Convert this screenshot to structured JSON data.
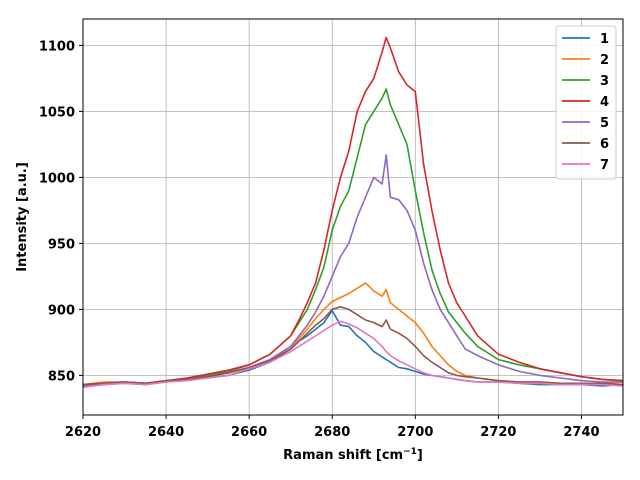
{
  "chart_data": {
    "type": "line",
    "title": "",
    "xlabel": "Raman shift [cm",
    "xlabel_sup": "−1",
    "xlabel_end": "]",
    "ylabel": "Intensity [a.u.]",
    "xlim": [
      2620,
      2750
    ],
    "ylim": [
      820,
      1120
    ],
    "xticks": [
      2620,
      2640,
      2660,
      2680,
      2700,
      2720,
      2740
    ],
    "yticks": [
      850,
      900,
      950,
      1000,
      1050,
      1100
    ],
    "grid": true,
    "legend_position": "top-right",
    "x": [
      2620,
      2625,
      2630,
      2635,
      2640,
      2645,
      2650,
      2655,
      2660,
      2665,
      2670,
      2672,
      2674,
      2676,
      2678,
      2680,
      2682,
      2684,
      2686,
      2688,
      2690,
      2692,
      2693,
      2694,
      2696,
      2698,
      2700,
      2702,
      2704,
      2706,
      2708,
      2710,
      2712,
      2715,
      2720,
      2725,
      2730,
      2735,
      2740,
      2745,
      2750
    ],
    "series": [
      {
        "name": "1",
        "color": "#1f77b4",
        "values": [
          843,
          844,
          845,
          844,
          845,
          847,
          848,
          850,
          854,
          860,
          870,
          876,
          880,
          885,
          890,
          899,
          888,
          887,
          880,
          875,
          868,
          864,
          862,
          860,
          856,
          855,
          853,
          851,
          850,
          849,
          848,
          847,
          846,
          845,
          845,
          844,
          843,
          843,
          843,
          842,
          843
        ]
      },
      {
        "name": "2",
        "color": "#ff7f0e",
        "values": [
          843,
          845,
          845,
          844,
          846,
          847,
          849,
          852,
          856,
          862,
          872,
          878,
          885,
          893,
          900,
          906,
          909,
          912,
          916,
          920,
          914,
          910,
          915,
          905,
          900,
          895,
          890,
          882,
          872,
          865,
          858,
          853,
          850,
          848,
          846,
          845,
          845,
          844,
          844,
          844,
          845
        ]
      },
      {
        "name": "3",
        "color": "#2ca02c",
        "values": [
          842,
          843,
          844,
          843,
          845,
          847,
          850,
          853,
          858,
          866,
          880,
          890,
          900,
          915,
          932,
          960,
          978,
          990,
          1015,
          1040,
          1050,
          1060,
          1067,
          1055,
          1040,
          1025,
          990,
          958,
          930,
          912,
          898,
          890,
          882,
          872,
          862,
          858,
          855,
          852,
          849,
          847,
          846
        ]
      },
      {
        "name": "4",
        "color": "#d62728",
        "values": [
          843,
          844,
          845,
          844,
          846,
          848,
          851,
          854,
          858,
          866,
          880,
          892,
          905,
          920,
          945,
          975,
          1000,
          1020,
          1050,
          1065,
          1075,
          1095,
          1106,
          1098,
          1080,
          1070,
          1065,
          1010,
          975,
          945,
          920,
          905,
          895,
          880,
          866,
          860,
          855,
          852,
          849,
          847,
          846
        ]
      },
      {
        "name": "5",
        "color": "#9467bd",
        "values": [
          842,
          844,
          845,
          844,
          845,
          847,
          849,
          852,
          856,
          862,
          872,
          880,
          888,
          898,
          910,
          925,
          940,
          950,
          970,
          985,
          1000,
          995,
          1017,
          985,
          983,
          975,
          960,
          935,
          915,
          900,
          890,
          880,
          870,
          865,
          858,
          853,
          850,
          848,
          846,
          845,
          845
        ]
      },
      {
        "name": "6",
        "color": "#8c564b",
        "values": [
          843,
          844,
          845,
          844,
          846,
          847,
          849,
          852,
          856,
          861,
          870,
          876,
          882,
          888,
          893,
          900,
          902,
          900,
          896,
          892,
          890,
          887,
          892,
          885,
          882,
          878,
          872,
          865,
          860,
          856,
          852,
          850,
          849,
          848,
          846,
          845,
          845,
          844,
          844,
          844,
          843
        ]
      },
      {
        "name": "7",
        "color": "#e377c2",
        "values": [
          841,
          843,
          844,
          843,
          845,
          846,
          848,
          850,
          855,
          860,
          868,
          872,
          876,
          880,
          884,
          888,
          891,
          889,
          886,
          882,
          878,
          872,
          868,
          865,
          861,
          858,
          855,
          852,
          850,
          849,
          848,
          847,
          846,
          845,
          845,
          844,
          844,
          843,
          843,
          843,
          842
        ]
      }
    ]
  }
}
